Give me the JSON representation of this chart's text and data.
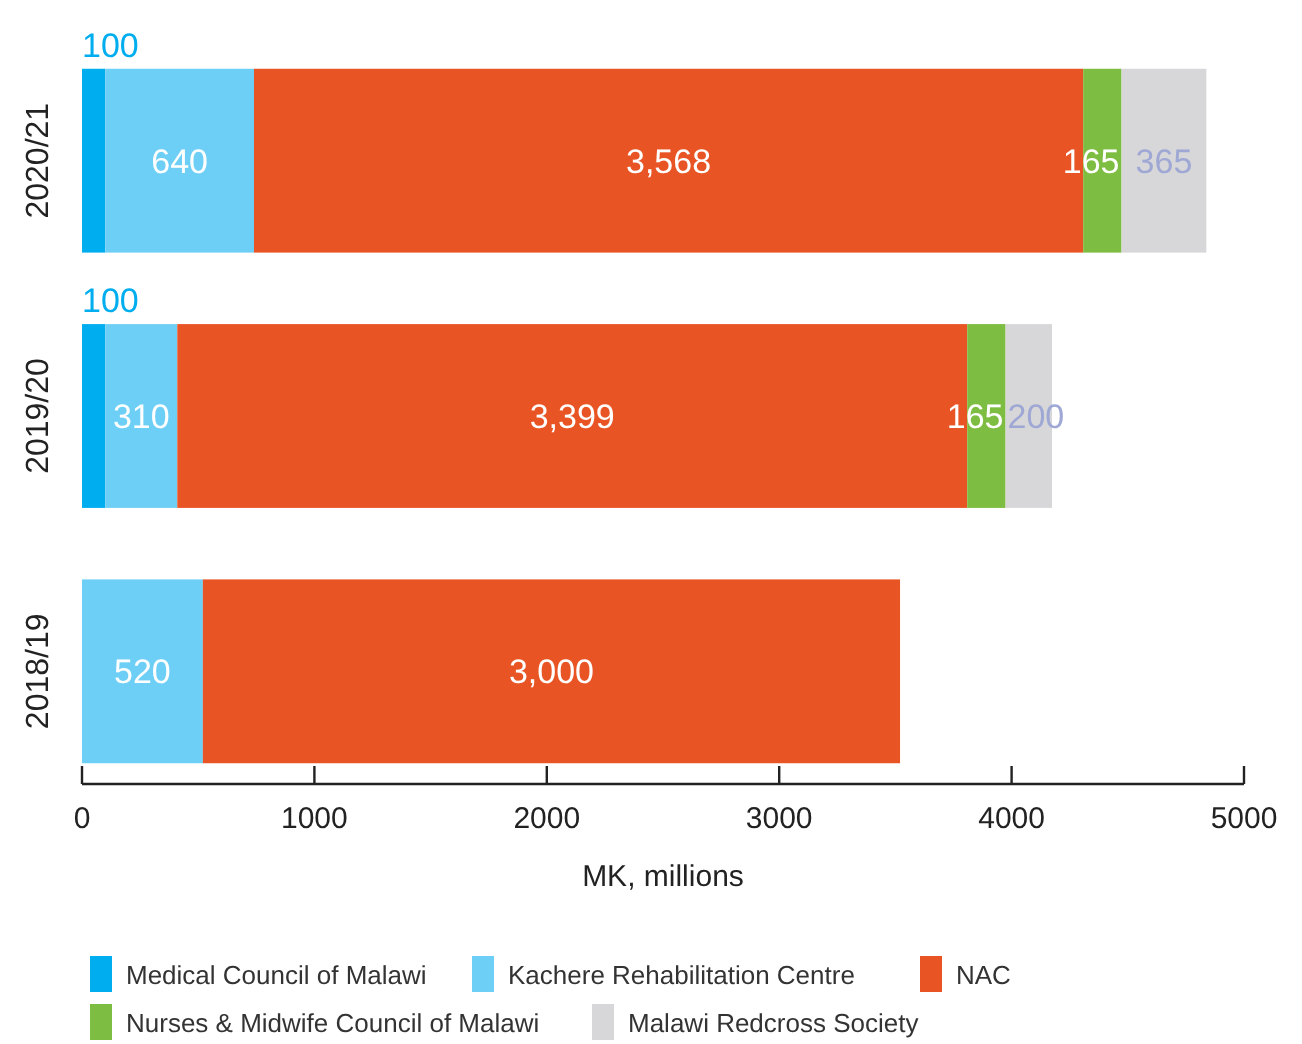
{
  "chart_data": {
    "type": "bar",
    "orientation": "horizontal",
    "stacked": true,
    "categories": [
      "2020/21",
      "2019/20",
      "2018/19"
    ],
    "series": [
      {
        "name": "Medical Council of Malawi",
        "color": "#00aeef",
        "values": [
          100,
          100,
          null
        ],
        "value_labels": [
          "100",
          "100",
          null
        ]
      },
      {
        "name": "Kachere Rehabilitation Centre",
        "color": "#6dcff6",
        "values": [
          640,
          310,
          520
        ],
        "value_labels": [
          "640",
          "310",
          "520"
        ]
      },
      {
        "name": "NAC",
        "color": "#e95424",
        "values": [
          3568,
          3399,
          3000
        ],
        "value_labels": [
          "3,568",
          "3,399",
          "3,000"
        ]
      },
      {
        "name": "Nurses & Midwife Council of Malawi",
        "color": "#7dbd42",
        "values": [
          165,
          165,
          null
        ],
        "value_labels": [
          "165",
          "165",
          null
        ]
      },
      {
        "name": "Malawi Redcross Society",
        "color": "#d7d7d9",
        "values": [
          365,
          200,
          null
        ],
        "value_labels": [
          "365",
          "200",
          null
        ]
      }
    ],
    "xlim": [
      0,
      5000
    ],
    "xticks": [
      0,
      1000,
      2000,
      3000,
      4000,
      5000
    ],
    "xlabel": "MK, millions",
    "legend": "bottom"
  }
}
